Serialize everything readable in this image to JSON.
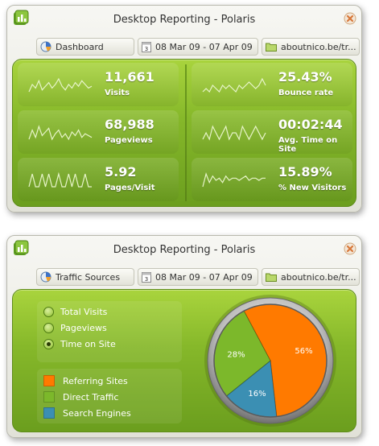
{
  "window1": {
    "title": "Desktop Reporting - Polaris",
    "breadcrumbs": [
      {
        "label": "Dashboard",
        "icon": "dashboard-icon"
      },
      {
        "label": "08 Mar 09 - 07 Apr 09",
        "icon": "calendar-icon"
      },
      {
        "label": "aboutnico.be/tr...",
        "icon": "folder-icon"
      }
    ],
    "metrics": [
      {
        "value": "11,661",
        "label": "Visits",
        "spark": [
          8,
          12,
          10,
          14,
          9,
          11,
          13,
          10,
          12,
          15,
          11,
          9,
          12,
          10,
          13,
          11,
          14,
          12,
          10,
          11
        ]
      },
      {
        "value": "25.43%",
        "label": "Bounce rate",
        "spark": [
          10,
          11,
          10,
          12,
          11,
          10,
          12,
          11,
          12,
          11,
          10,
          12,
          11,
          12,
          13,
          12,
          11,
          12,
          14,
          12
        ]
      },
      {
        "value": "68,988",
        "label": "Pageviews",
        "spark": [
          9,
          14,
          10,
          16,
          11,
          13,
          15,
          9,
          12,
          14,
          10,
          12,
          9,
          13,
          11,
          14,
          10,
          12,
          11,
          10
        ]
      },
      {
        "value": "00:02:44",
        "label": "Avg. Time on Site",
        "spark": [
          11,
          12,
          11,
          13,
          12,
          11,
          12,
          13,
          11,
          12,
          12,
          11,
          13,
          12,
          11,
          12,
          13,
          12,
          11,
          12
        ]
      },
      {
        "value": "5.92",
        "label": "Pages/Visit",
        "spark": [
          12,
          13,
          12,
          12,
          13,
          12,
          13,
          12,
          12,
          13,
          12,
          12,
          13,
          12,
          13,
          12,
          12,
          13,
          12,
          12
        ]
      },
      {
        "value": "15.89%",
        "label": "% New Visitors",
        "spark": [
          8,
          14,
          10,
          13,
          11,
          12,
          10,
          13,
          11,
          12,
          12,
          11,
          12,
          13,
          11,
          12,
          12,
          11,
          12,
          12
        ]
      }
    ]
  },
  "window2": {
    "title": "Desktop Reporting - Polaris",
    "breadcrumbs": [
      {
        "label": "Traffic Sources",
        "icon": "traffic-sources-icon"
      },
      {
        "label": "08 Mar 09 - 07 Apr 09",
        "icon": "calendar-icon"
      },
      {
        "label": "aboutnico.be/tr...",
        "icon": "folder-icon"
      }
    ],
    "options": [
      {
        "label": "Total Visits",
        "checked": false
      },
      {
        "label": "Pageviews",
        "checked": false
      },
      {
        "label": "Time on Site",
        "checked": true
      }
    ],
    "legend": [
      {
        "label": "Referring Sites",
        "color": "#ff7a00"
      },
      {
        "label": "Direct Traffic",
        "color": "#7cb82b"
      },
      {
        "label": "Search Engines",
        "color": "#3b8fb3"
      }
    ]
  },
  "chart_data": {
    "type": "pie",
    "categories": [
      "Referring Sites",
      "Direct Traffic",
      "Search Engines"
    ],
    "values": [
      56,
      28,
      16
    ],
    "labels": [
      "56%",
      "28%",
      "16%"
    ],
    "colors": [
      "#ff7a00",
      "#7cb82b",
      "#3b8fb3"
    ]
  }
}
